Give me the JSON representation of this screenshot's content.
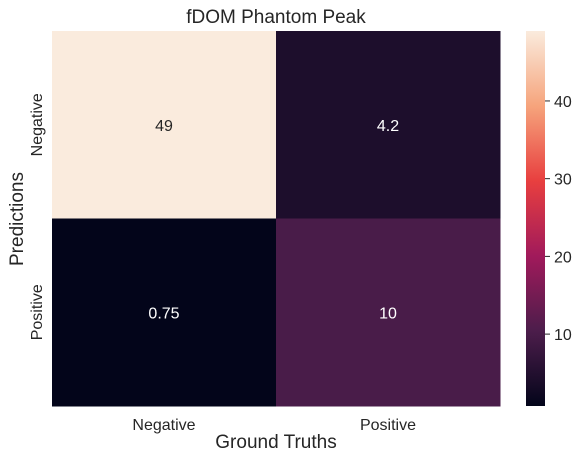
{
  "chart_data": {
    "type": "heatmap",
    "title": "fDOM Phantom Peak",
    "xlabel": "Ground Truths",
    "ylabel": "Predictions",
    "x_categories": [
      "Negative",
      "Positive"
    ],
    "y_categories": [
      "Negative",
      "Positive"
    ],
    "values": [
      [
        49,
        4.2
      ],
      [
        0.75,
        10
      ]
    ],
    "value_labels": [
      [
        "49",
        "4.2"
      ],
      [
        "0.75",
        "10"
      ]
    ],
    "colorbar": {
      "min": 0.75,
      "max": 49,
      "ticks": [
        10,
        20,
        30,
        40
      ],
      "tick_labels": [
        "10",
        "20",
        "30",
        "40"
      ],
      "colormap": "rocket",
      "colors": [
        "#03051a",
        "#4c1d4b",
        "#a11a5b",
        "#e83f3f",
        "#f6a47c",
        "#faebdd"
      ]
    },
    "cell_text_colors": {
      "dark": "#262626",
      "light": "#ffffff"
    }
  }
}
